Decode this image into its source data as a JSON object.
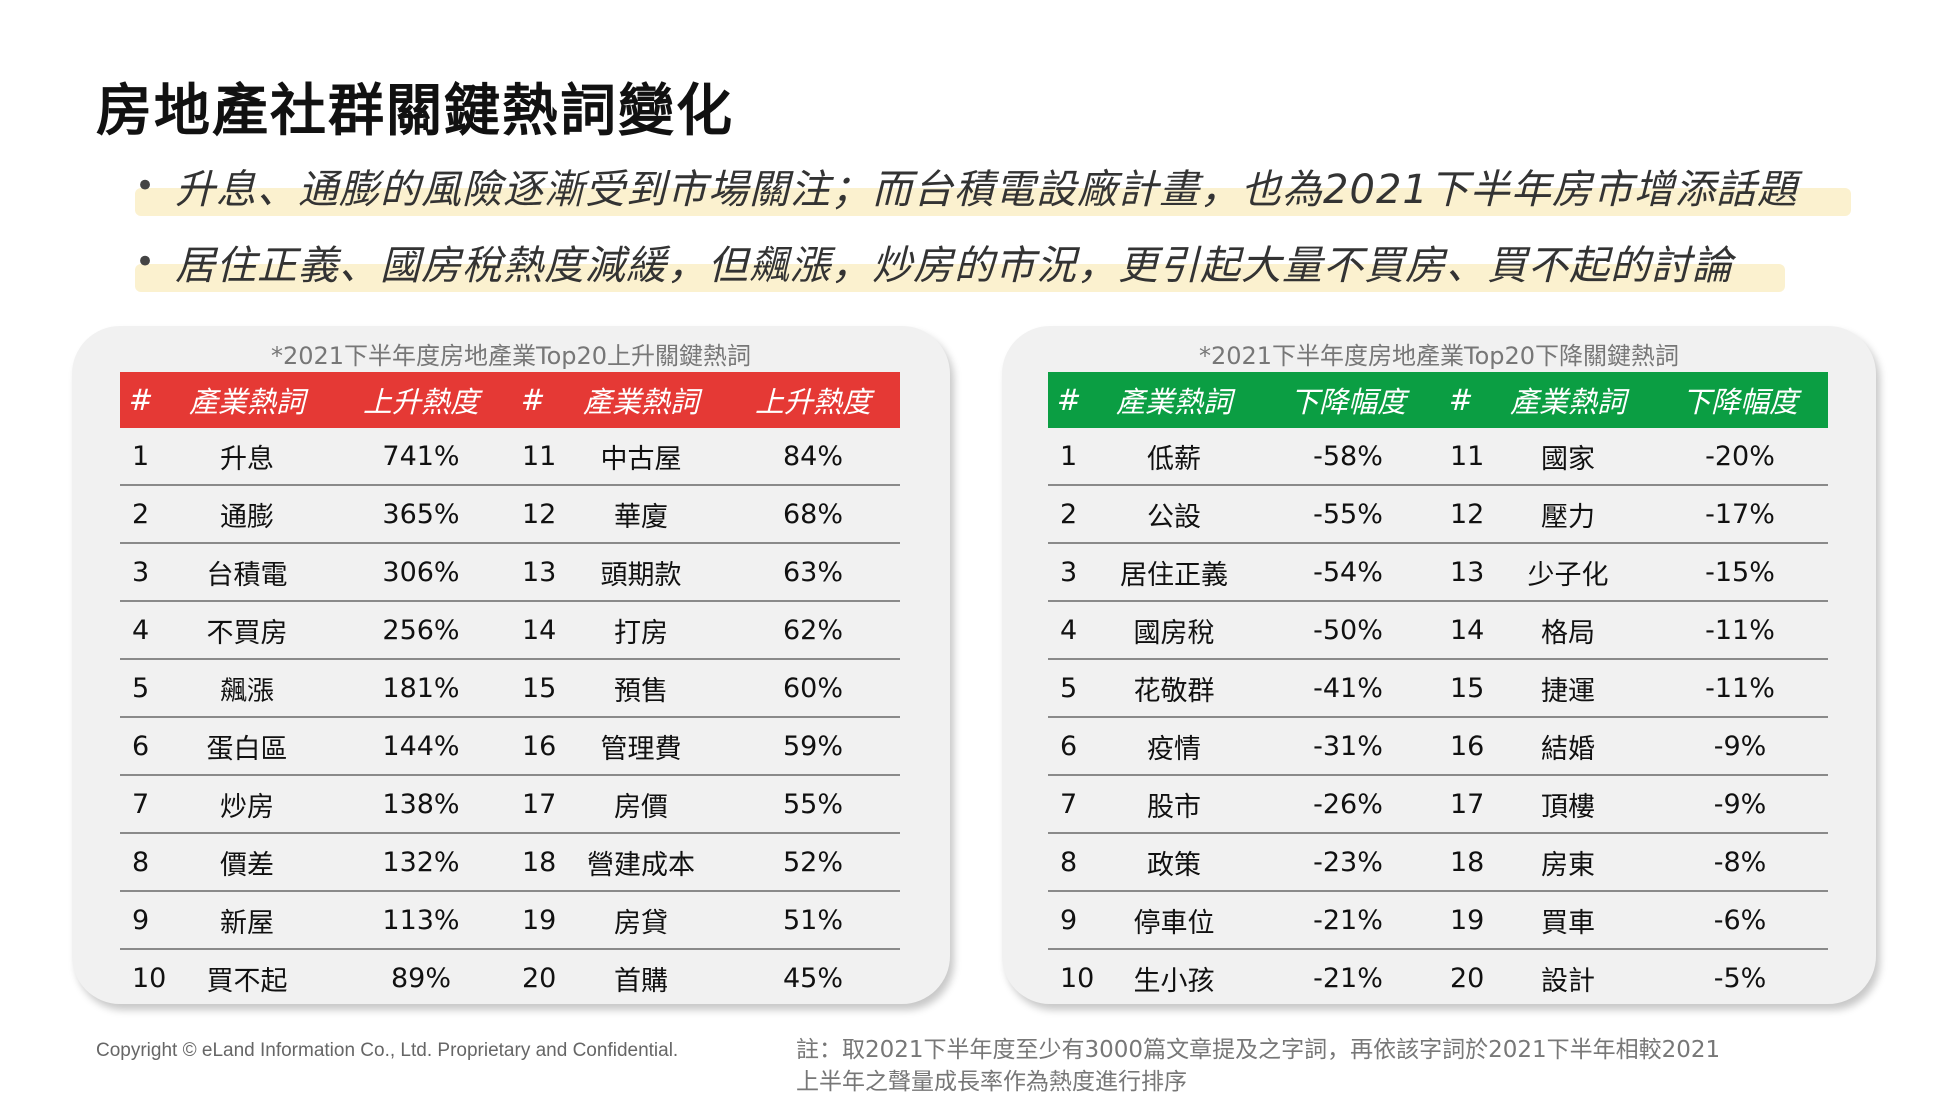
{
  "title": "房地產社群關鍵熱詞變化",
  "bullets": [
    "升息、通膨的風險逐漸受到市場關注；而台積電設廠計畫，也為2021下半年房市增添話題",
    "居住正義、國房稅熱度減緩，但飆漲，炒房的市況，更引起大量不買房、買不起的討論"
  ],
  "bullet_marker": "•",
  "rising": {
    "caption": "*2021下半年度房地產業Top20上升關鍵熱詞",
    "headers": [
      "#",
      "產業熱詞",
      "上升熱度",
      "#",
      "產業熱詞",
      "上升熱度"
    ],
    "rows": [
      [
        "1",
        "升息",
        "741%",
        "11",
        "中古屋",
        "84%"
      ],
      [
        "2",
        "通膨",
        "365%",
        "12",
        "華廈",
        "68%"
      ],
      [
        "3",
        "台積電",
        "306%",
        "13",
        "頭期款",
        "63%"
      ],
      [
        "4",
        "不買房",
        "256%",
        "14",
        "打房",
        "62%"
      ],
      [
        "5",
        "飆漲",
        "181%",
        "15",
        "預售",
        "60%"
      ],
      [
        "6",
        "蛋白區",
        "144%",
        "16",
        "管理費",
        "59%"
      ],
      [
        "7",
        "炒房",
        "138%",
        "17",
        "房價",
        "55%"
      ],
      [
        "8",
        "價差",
        "132%",
        "18",
        "營建成本",
        "52%"
      ],
      [
        "9",
        "新屋",
        "113%",
        "19",
        "房貸",
        "51%"
      ],
      [
        "10",
        "買不起",
        "89%",
        "20",
        "首購",
        "45%"
      ]
    ],
    "header_color": "#e53935"
  },
  "falling": {
    "caption": "*2021下半年度房地產業Top20下降關鍵熱詞",
    "headers": [
      "#",
      "產業熱詞",
      "下降幅度",
      "#",
      "產業熱詞",
      "下降幅度"
    ],
    "rows": [
      [
        "1",
        "低薪",
        "-58%",
        "11",
        "國家",
        "-20%"
      ],
      [
        "2",
        "公設",
        "-55%",
        "12",
        "壓力",
        "-17%"
      ],
      [
        "3",
        "居住正義",
        "-54%",
        "13",
        "少子化",
        "-15%"
      ],
      [
        "4",
        "國房稅",
        "-50%",
        "14",
        "格局",
        "-11%"
      ],
      [
        "5",
        "花敬群",
        "-41%",
        "15",
        "捷運",
        "-11%"
      ],
      [
        "6",
        "疫情",
        "-31%",
        "16",
        "結婚",
        "-9%"
      ],
      [
        "7",
        "股市",
        "-26%",
        "17",
        "頂樓",
        "-9%"
      ],
      [
        "8",
        "政策",
        "-23%",
        "18",
        "房東",
        "-8%"
      ],
      [
        "9",
        "停車位",
        "-21%",
        "19",
        "買車",
        "-6%"
      ],
      [
        "10",
        "生小孩",
        "-21%",
        "20",
        "設計",
        "-5%"
      ]
    ],
    "header_color": "#0b9e43"
  },
  "footer": {
    "copyright": "Copyright © eLand Information Co., Ltd. Proprietary and Confidential.",
    "note": "註：取2021下半年度至少有3000篇文章提及之字詞，再依該字詞於2021下半年相較2021上半年之聲量成長率作為熱度進行排序"
  }
}
